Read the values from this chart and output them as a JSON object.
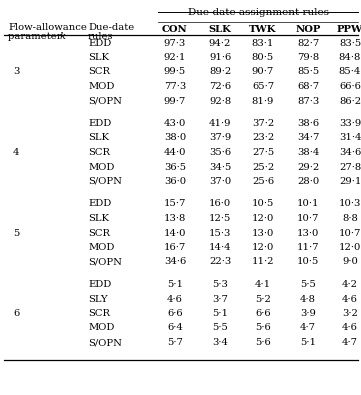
{
  "title_span": "Due-date assignment rules",
  "col_headers": [
    "CON",
    "SLK",
    "TWK",
    "NOP",
    "PPW"
  ],
  "row_header1_line1": "Flow-allowance",
  "row_header1_line2": "parameter ",
  "row_header1_k": "k",
  "row_header2_line1": "Due-date",
  "row_header2_line2": "rules",
  "groups": [
    {
      "k": "3",
      "rows": [
        [
          "EDD",
          "97·3",
          "94·2",
          "83·1",
          "82·7",
          "83·5"
        ],
        [
          "SLK",
          "92·1",
          "91·6",
          "80·5",
          "79·8",
          "84·8"
        ],
        [
          "SCR",
          "99·5",
          "89·2",
          "90·7",
          "85·5",
          "85·4"
        ],
        [
          "MOD",
          "77·3",
          "72·6",
          "65·7",
          "68·7",
          "66·6"
        ],
        [
          "S/OPN",
          "99·7",
          "92·8",
          "81·9",
          "87·3",
          "86·2"
        ]
      ]
    },
    {
      "k": "4",
      "rows": [
        [
          "EDD",
          "43·0",
          "41·9",
          "37·2",
          "38·6",
          "33·9"
        ],
        [
          "SLK",
          "38·0",
          "37·9",
          "23·2",
          "34·7",
          "31·4"
        ],
        [
          "SCR",
          "44·0",
          "35·6",
          "27·5",
          "38·4",
          "34·6"
        ],
        [
          "MOD",
          "36·5",
          "34·5",
          "25·2",
          "29·2",
          "27·8"
        ],
        [
          "S/OPN",
          "36·0",
          "37·0",
          "25·6",
          "28·0",
          "29·1"
        ]
      ]
    },
    {
      "k": "5",
      "rows": [
        [
          "EDD",
          "15·7",
          "16·0",
          "10·5",
          "10·1",
          "10·3"
        ],
        [
          "SLK",
          "13·8",
          "12·5",
          "12·0",
          "10·7",
          "8·8"
        ],
        [
          "SCR",
          "14·0",
          "15·3",
          "13·0",
          "13·0",
          "10·7"
        ],
        [
          "MOD",
          "16·7",
          "14·4",
          "12·0",
          "11·7",
          "12·0"
        ],
        [
          "S/OPN",
          "34·6",
          "22·3",
          "11·2",
          "10·5",
          "9·0"
        ]
      ]
    },
    {
      "k": "6",
      "rows": [
        [
          "EDD",
          "5·1",
          "5·3",
          "4·1",
          "5·5",
          "4·2"
        ],
        [
          "SLY",
          "4·6",
          "3·7",
          "5·2",
          "4·8",
          "4·6"
        ],
        [
          "SCR",
          "6·6",
          "5·1",
          "6·6",
          "3·9",
          "3·2"
        ],
        [
          "MOD",
          "6·4",
          "5·5",
          "5·6",
          "4·7",
          "4·6"
        ],
        [
          "S/OPN",
          "5·7",
          "3·4",
          "5·6",
          "5·1",
          "4·7"
        ]
      ]
    }
  ],
  "bg_color": "#ffffff",
  "text_color": "#000000",
  "data_fs": 7.2,
  "header_fs": 7.2,
  "title_fs": 7.5
}
